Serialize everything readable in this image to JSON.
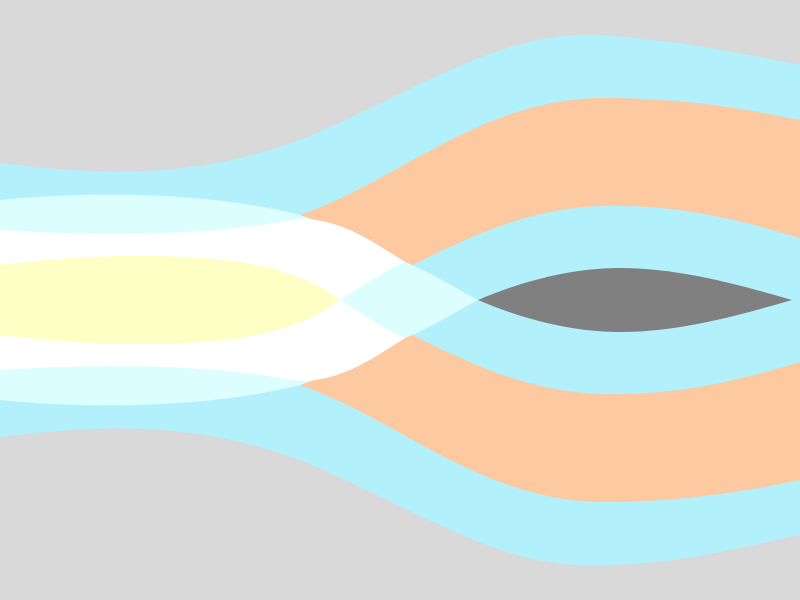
{
  "colors": {
    "background": "#d9d9d9",
    "outer_band": "#b2f0fc",
    "peach_band": "#fdc9a0",
    "inner_left_band": "#ddfeff",
    "white_band": "#ffffff",
    "yellow_core": "#feffc4",
    "inner_right_band": "#b2f0fc",
    "overlap_lens": "#ddfeff",
    "dark_core": "#808080"
  },
  "shapes": [
    {
      "name": "outer-band-shape",
      "kind": "abstract",
      "color_key": "outer_band"
    },
    {
      "name": "peach-band-shape",
      "kind": "abstract",
      "color_key": "peach_band"
    },
    {
      "name": "inner-left-band-shape",
      "kind": "abstract",
      "color_key": "inner_left_band"
    },
    {
      "name": "white-band-shape",
      "kind": "abstract",
      "color_key": "white_band"
    },
    {
      "name": "yellow-core-shape",
      "kind": "abstract",
      "color_key": "yellow_core"
    },
    {
      "name": "inner-right-band-shape",
      "kind": "abstract",
      "color_key": "inner_right_band"
    },
    {
      "name": "overlap-lens-shape",
      "kind": "abstract",
      "color_key": "overlap_lens"
    },
    {
      "name": "dark-core-shape",
      "kind": "abstract",
      "color_key": "dark_core"
    }
  ]
}
